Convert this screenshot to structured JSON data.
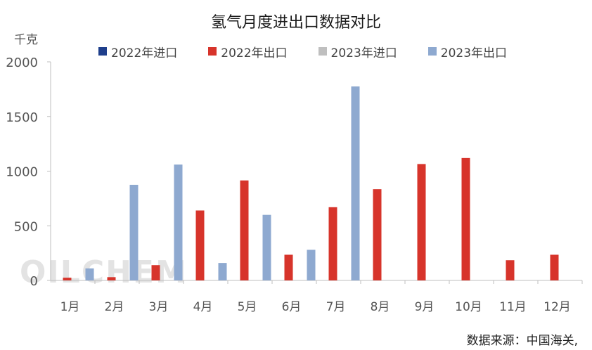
{
  "chart_data": {
    "type": "bar",
    "title": "氢气月度进出口数据对比",
    "y_unit": "千克",
    "source": "数据来源：中国海关,",
    "watermark": "OILCHEM",
    "categories": [
      "1月",
      "2月",
      "3月",
      "4月",
      "5月",
      "6月",
      "7月",
      "8月",
      "9月",
      "10月",
      "11月",
      "12月"
    ],
    "series": [
      {
        "name": "2022年进口",
        "color": "#1f3f8c",
        "values": [
          0,
          0,
          0,
          0,
          0,
          0,
          0,
          0,
          0,
          0,
          0,
          0
        ]
      },
      {
        "name": "2022年出口",
        "color": "#d7342b",
        "values": [
          25,
          30,
          140,
          640,
          915,
          235,
          670,
          835,
          1065,
          1120,
          185,
          235
        ]
      },
      {
        "name": "2023年进口",
        "color": "#bfbfbf",
        "values": [
          0,
          0,
          0,
          0,
          0,
          0,
          0,
          0,
          0,
          0,
          0,
          0
        ]
      },
      {
        "name": "2023年出口",
        "color": "#8ea9d0",
        "values": [
          110,
          875,
          1060,
          160,
          600,
          280,
          1775,
          0,
          0,
          0,
          0,
          0
        ]
      }
    ],
    "ylim": [
      0,
      2000
    ],
    "yticks": [
      0,
      500,
      1000,
      1500,
      2000
    ],
    "legend_position": "top",
    "grid": false
  }
}
